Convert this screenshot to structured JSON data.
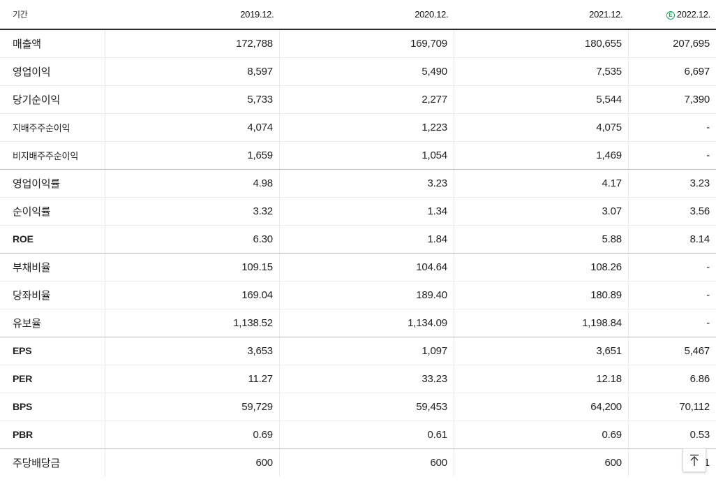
{
  "table": {
    "header": {
      "period_label": "기간",
      "years": [
        "2019.12.",
        "2020.12.",
        "2021.12.",
        "2022.12."
      ],
      "estimate_badge": "E"
    },
    "rows": [
      {
        "label": "매출액",
        "values": [
          "172,788",
          "169,709",
          "180,655",
          "207,695"
        ]
      },
      {
        "label": "영업이익",
        "values": [
          "8,597",
          "5,490",
          "7,535",
          "6,697"
        ]
      },
      {
        "label": "당기순이익",
        "values": [
          "5,733",
          "2,277",
          "5,544",
          "7,390"
        ]
      },
      {
        "label": "지배주주순이익",
        "values": [
          "4,074",
          "1,223",
          "4,075",
          "-"
        ]
      },
      {
        "label": "비지배주주순이익",
        "values": [
          "1,659",
          "1,054",
          "1,469",
          "-"
        ]
      },
      {
        "label": "영업이익률",
        "values": [
          "4.98",
          "3.23",
          "4.17",
          "3.23"
        ]
      },
      {
        "label": "순이익률",
        "values": [
          "3.32",
          "1.34",
          "3.07",
          "3.56"
        ]
      },
      {
        "label": "ROE",
        "values": [
          "6.30",
          "1.84",
          "5.88",
          "8.14"
        ]
      },
      {
        "label": "부채비율",
        "values": [
          "109.15",
          "104.64",
          "108.26",
          "-"
        ]
      },
      {
        "label": "당좌비율",
        "values": [
          "169.04",
          "189.40",
          "180.89",
          "-"
        ]
      },
      {
        "label": "유보율",
        "values": [
          "1,138.52",
          "1,134.09",
          "1,198.84",
          "-"
        ]
      },
      {
        "label": "EPS",
        "values": [
          "3,653",
          "1,097",
          "3,651",
          "5,467"
        ]
      },
      {
        "label": "PER",
        "values": [
          "11.27",
          "33.23",
          "12.18",
          "6.86"
        ]
      },
      {
        "label": "BPS",
        "values": [
          "59,729",
          "59,453",
          "64,200",
          "70,112"
        ]
      },
      {
        "label": "PBR",
        "values": [
          "0.69",
          "0.61",
          "0.69",
          "0.53"
        ]
      },
      {
        "label": "주당배당금",
        "values": [
          "600",
          "600",
          "600",
          "1"
        ]
      }
    ]
  },
  "scroll_top": {
    "icon": "arrow-up-to-top-icon"
  },
  "colors": {
    "estimate_accent": "#1aa35a",
    "header_rule": "#2a2a2a",
    "row_border": "#ebebeb",
    "group_border": "#bcbcbc"
  }
}
